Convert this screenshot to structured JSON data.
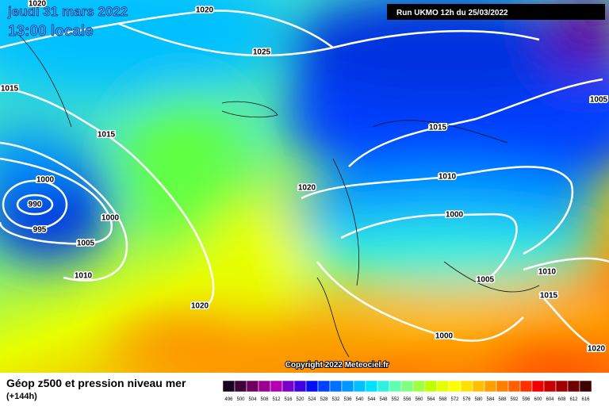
{
  "header": {
    "date": "jeudi 31 mars 2022",
    "time": "13:00 locale",
    "run": "Run UKMO 12h du 25/03/2022"
  },
  "isobar_labels": [
    1020,
    1025,
    1015,
    1015,
    1000,
    990,
    995,
    1000,
    1005,
    1010,
    1020,
    1020,
    1015,
    1010,
    1000,
    1005,
    1010,
    1015,
    1000,
    1005,
    1020,
    1020
  ],
  "copyright": "Copyright 2022 Meteociel.fr",
  "legend": {
    "title": "Géop z500 et pression niveau mer",
    "lead": "(+144h)",
    "labels": [
      496,
      500,
      504,
      508,
      512,
      516,
      520,
      524,
      528,
      532,
      536,
      540,
      544,
      548,
      552,
      556,
      560,
      564,
      568,
      572,
      576,
      580,
      584,
      588,
      592,
      596,
      600,
      604,
      608,
      612,
      616
    ],
    "colors": [
      "#1a0020",
      "#40003a",
      "#700060",
      "#9a0090",
      "#b000b0",
      "#7800c8",
      "#4000e0",
      "#0010f0",
      "#0040ff",
      "#0070ff",
      "#0098ff",
      "#00c0ff",
      "#00e0ff",
      "#30f0e0",
      "#60ffb0",
      "#80ff80",
      "#a0ff40",
      "#c0ff00",
      "#e8ff00",
      "#ffff00",
      "#ffe000",
      "#ffc000",
      "#ffa000",
      "#ff8000",
      "#ff6000",
      "#ff3000",
      "#f00000",
      "#c80000",
      "#a00000",
      "#700000",
      "#400000"
    ]
  }
}
